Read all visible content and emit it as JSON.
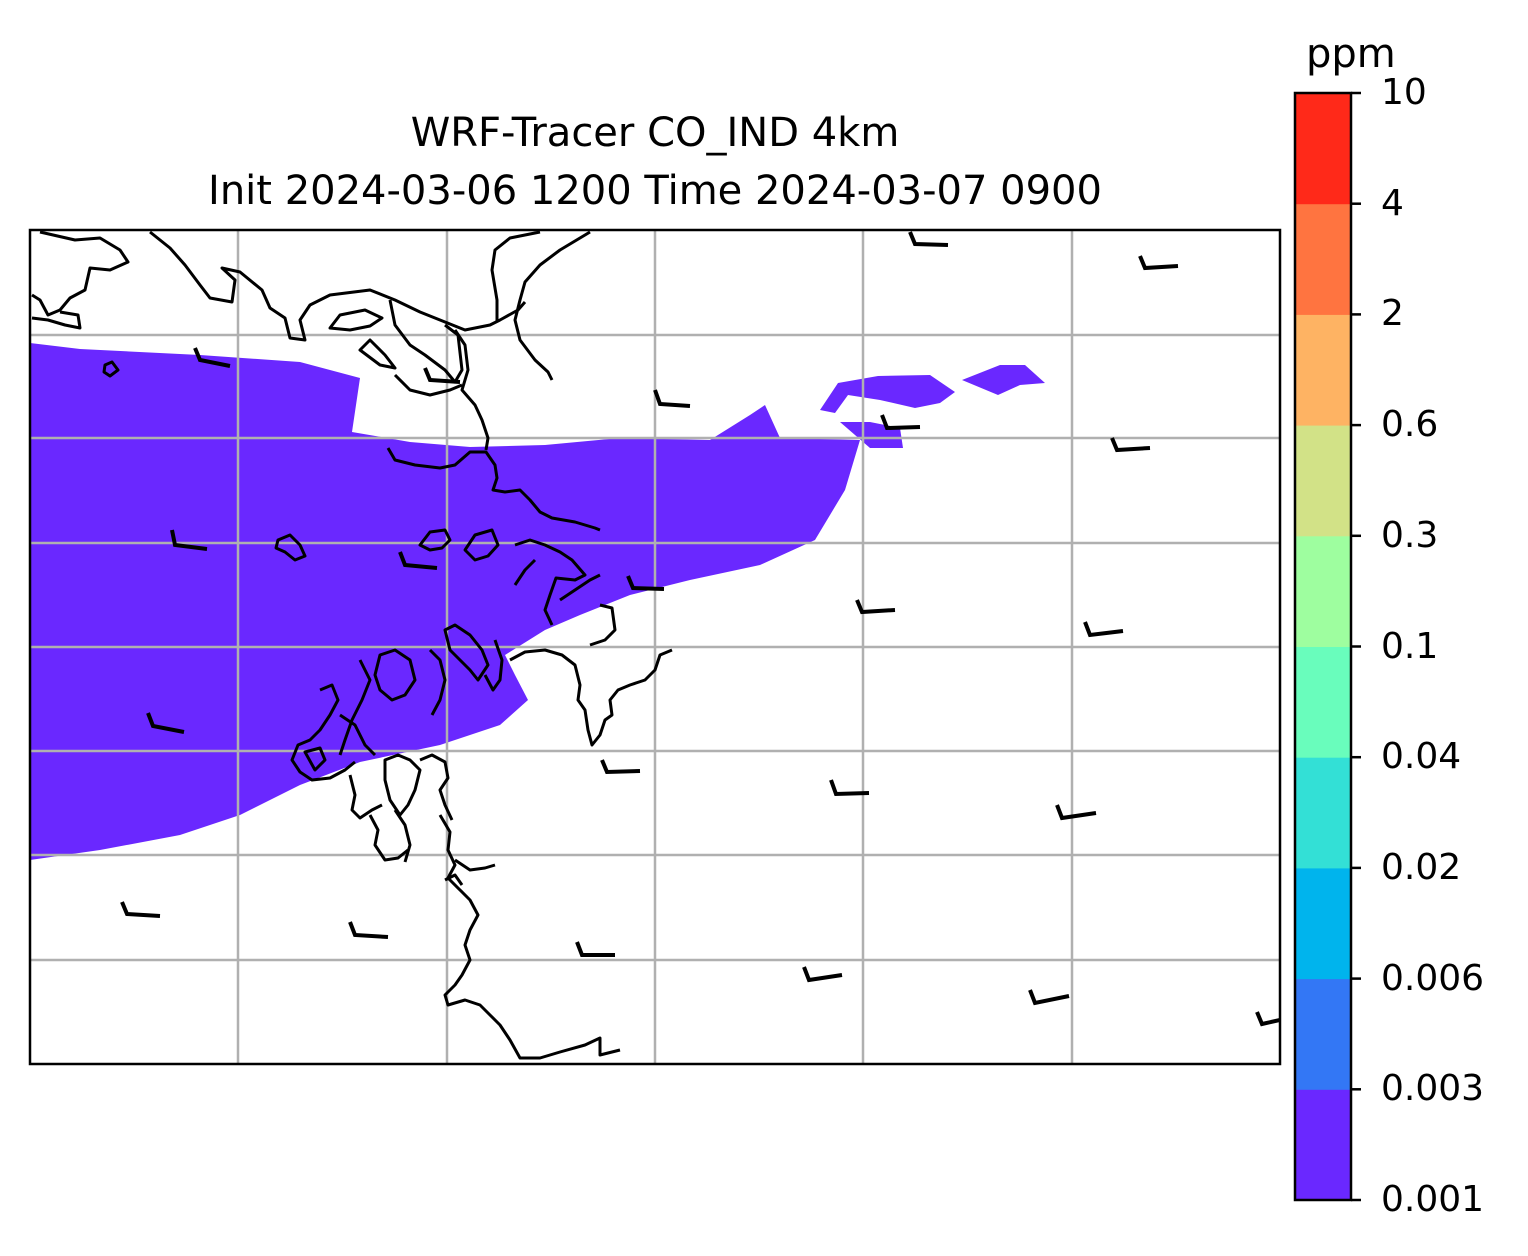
{
  "title": {
    "line1": "WRF-Tracer CO_IND 4km",
    "line2": "Init 2024-03-06 1200 Time 2024-03-07 0900"
  },
  "colorbar": {
    "unit": "ppm",
    "levels": [
      "0.001",
      "0.003",
      "0.006",
      "0.02",
      "0.04",
      "0.1",
      "0.3",
      "0.6",
      "2",
      "4",
      "10"
    ],
    "colors": [
      "#6a28ff",
      "#3377f5",
      "#00b4ed",
      "#33e0d6",
      "#69fdbc",
      "#9efe9f",
      "#d2e287",
      "#feb363",
      "#ff7440",
      "#ff2919"
    ]
  },
  "map": {
    "field": "CO_IND",
    "shaded_level": "0.001",
    "grid": true,
    "land_outline_color": "#000000",
    "gridline_color": "#b0b0b0"
  }
}
